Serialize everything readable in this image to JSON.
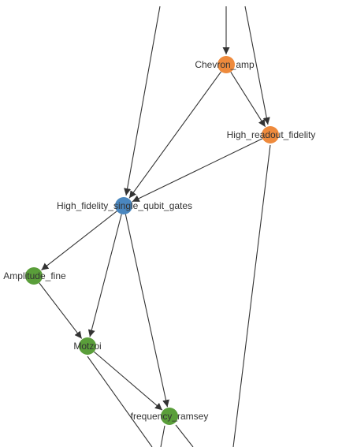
{
  "colors": {
    "calibrated": "#5a9e3a",
    "active": "#4a87bf",
    "pending": "#ee8a3c",
    "edge": "#333333"
  },
  "nodes": [
    {
      "id": "chevron",
      "label": "Chevron_amp",
      "status": "pending"
    },
    {
      "id": "readout",
      "label": "High_readout_fidelity",
      "status": "pending"
    },
    {
      "id": "hfsqg",
      "label": "High_fidelity_single_qubit_gates",
      "status": "active"
    },
    {
      "id": "amp",
      "label": "Amplitude_fine",
      "status": "calibrated"
    },
    {
      "id": "motzoi",
      "label": "Motzoi",
      "status": "calibrated"
    },
    {
      "id": "ramsey",
      "label": "frequency_ramsey",
      "status": "calibrated"
    }
  ],
  "edges": [
    {
      "from": "chevron",
      "to": "readout"
    },
    {
      "from": "chevron",
      "to": "hfsqg"
    },
    {
      "from": "readout",
      "to": "hfsqg"
    },
    {
      "from": "hfsqg",
      "to": "amp"
    },
    {
      "from": "hfsqg",
      "to": "motzoi"
    },
    {
      "from": "hfsqg",
      "to": "ramsey"
    },
    {
      "from": "amp",
      "to": "motzoi"
    },
    {
      "from": "motzoi",
      "to": "ramsey"
    }
  ]
}
